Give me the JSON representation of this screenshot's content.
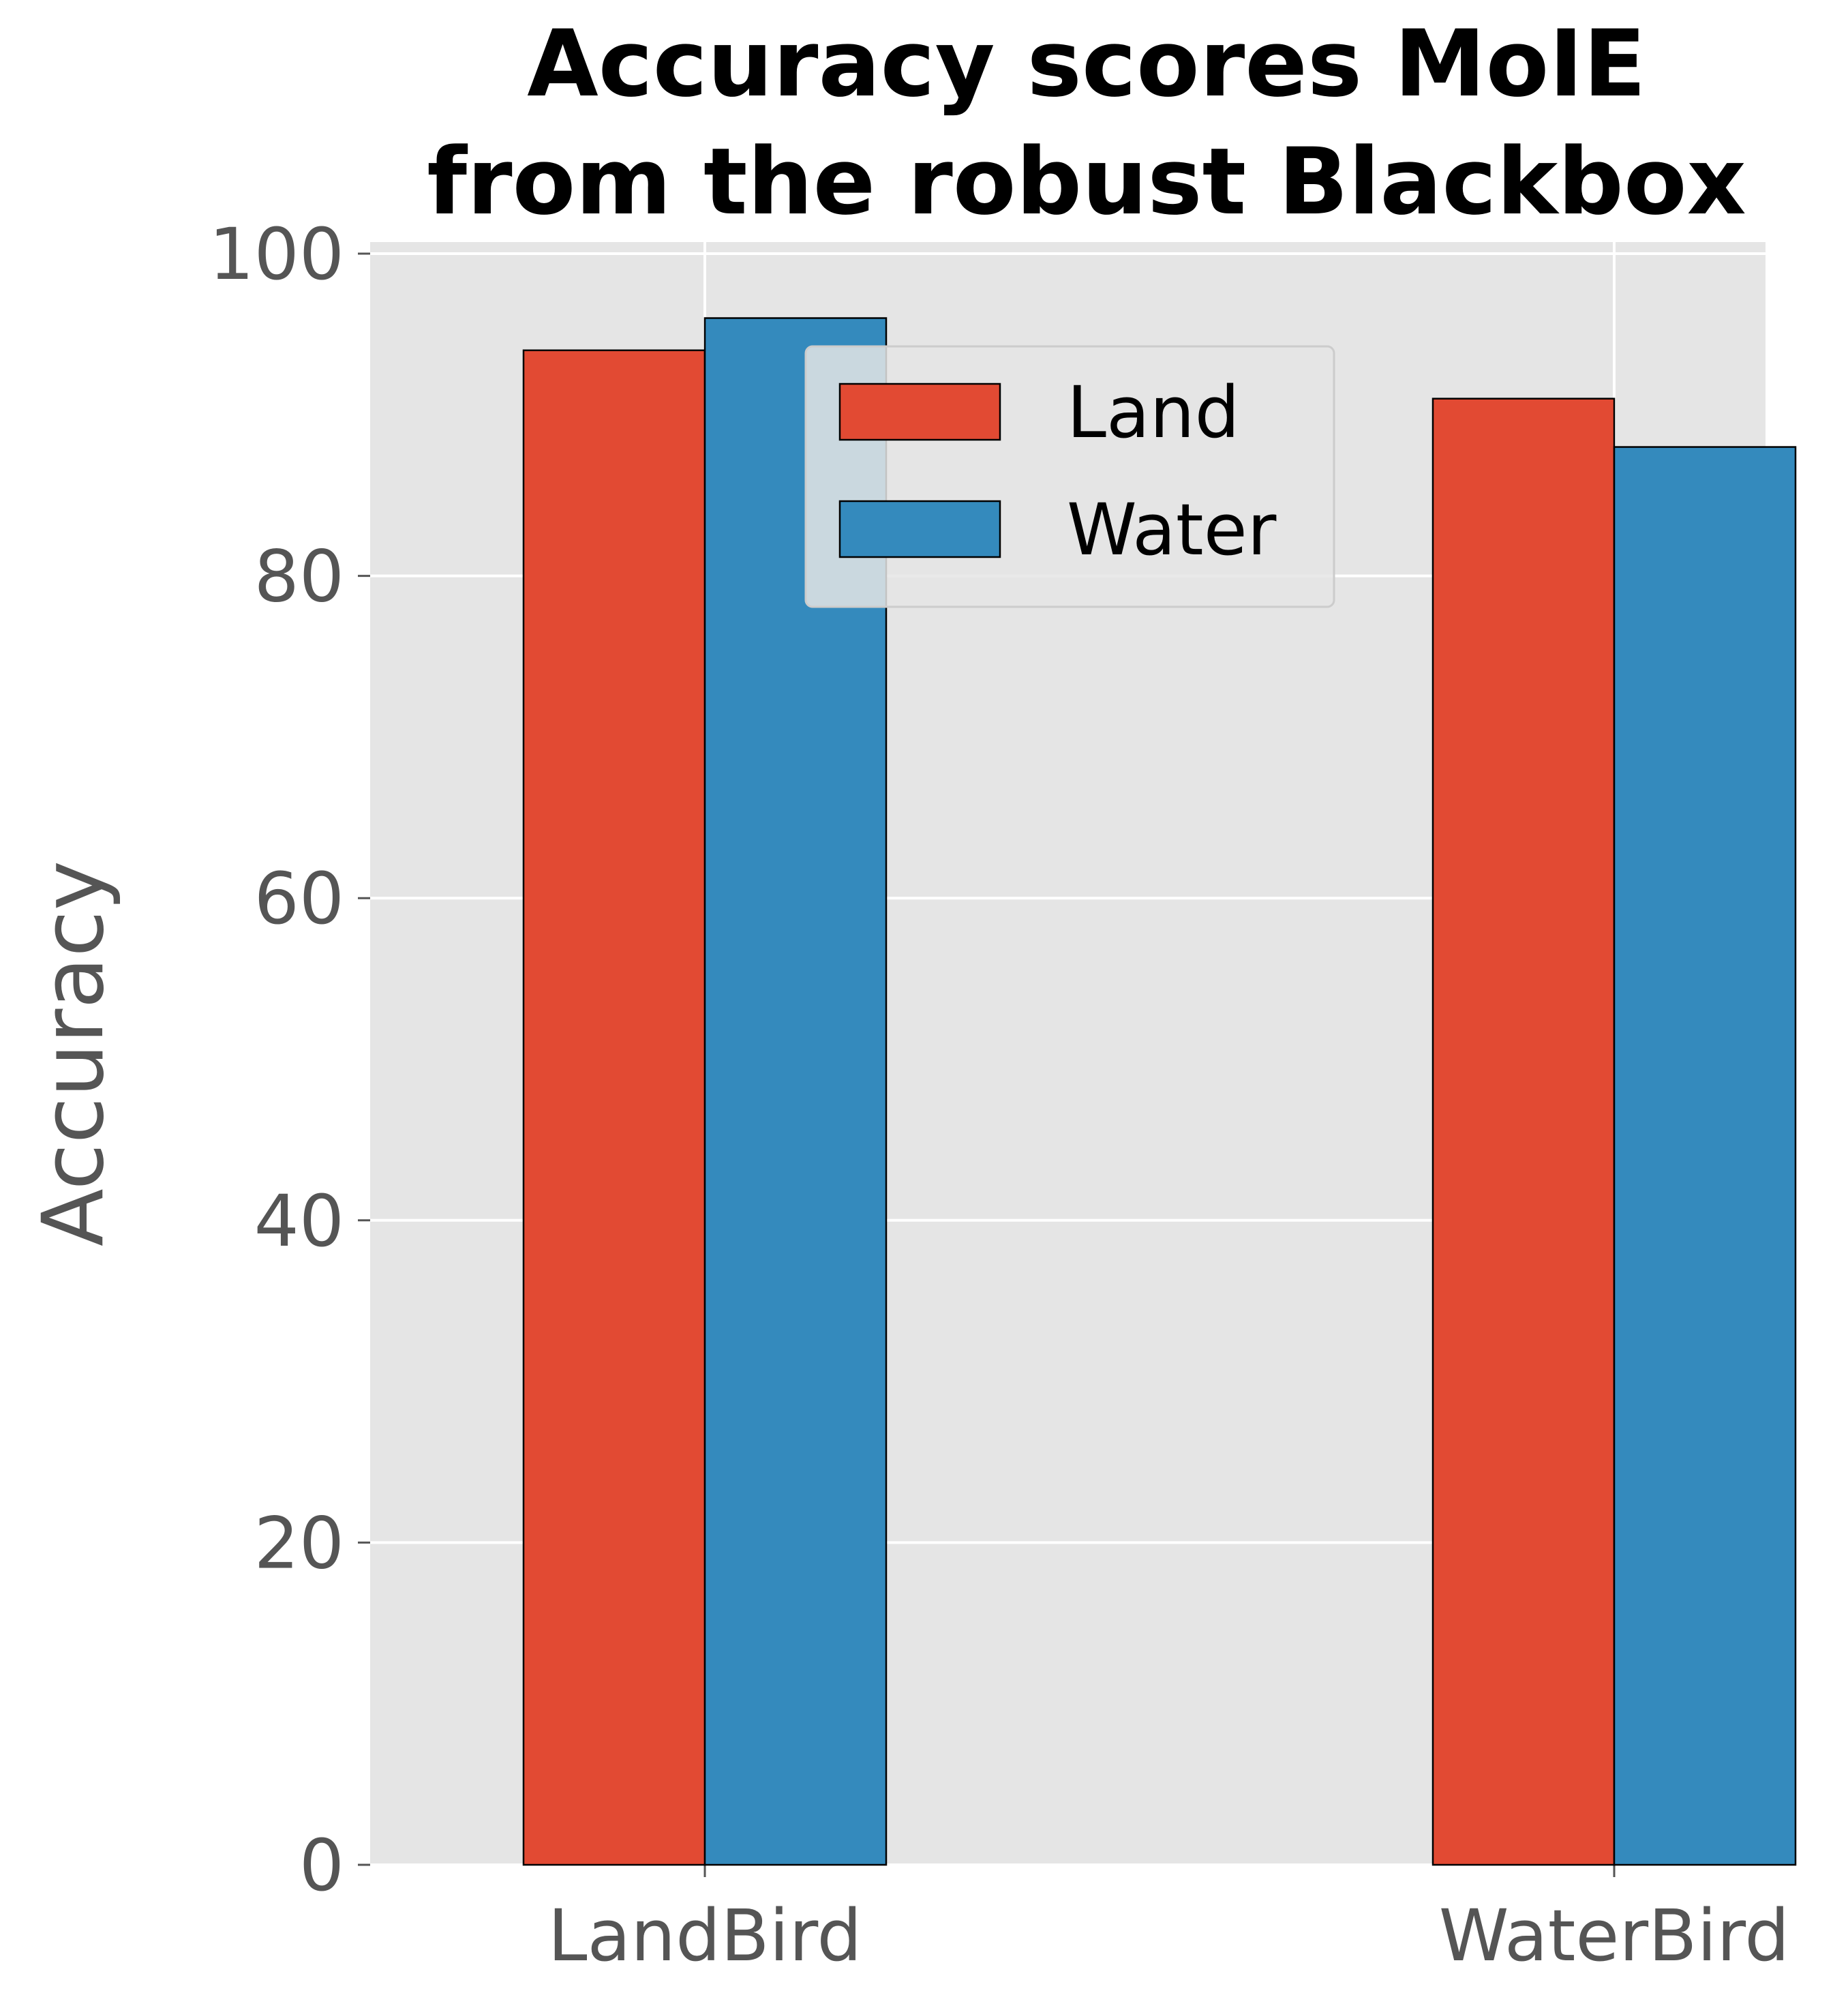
{
  "chart_data": {
    "type": "bar",
    "title_lines": [
      "Accuracy scores MoIE",
      "from the robust Blackbox"
    ],
    "xlabel": "",
    "ylabel": "Accuracy",
    "categories": [
      "LandBird",
      "WaterBird"
    ],
    "series": [
      {
        "name": "Land",
        "values": [
          94,
          91
        ],
        "color": "#E24A33"
      },
      {
        "name": "Water",
        "values": [
          96,
          88
        ],
        "color": "#348ABD"
      }
    ],
    "ylim": [
      0,
      100
    ],
    "yticks": [
      "0",
      "20",
      "40",
      "60",
      "80",
      "100"
    ],
    "grid": true,
    "legend": {
      "placement": "upper-center"
    },
    "colors": {
      "plot_background": "#E5E5E5",
      "grid": "#FFFFFF",
      "bar_edge": "#000000"
    }
  }
}
